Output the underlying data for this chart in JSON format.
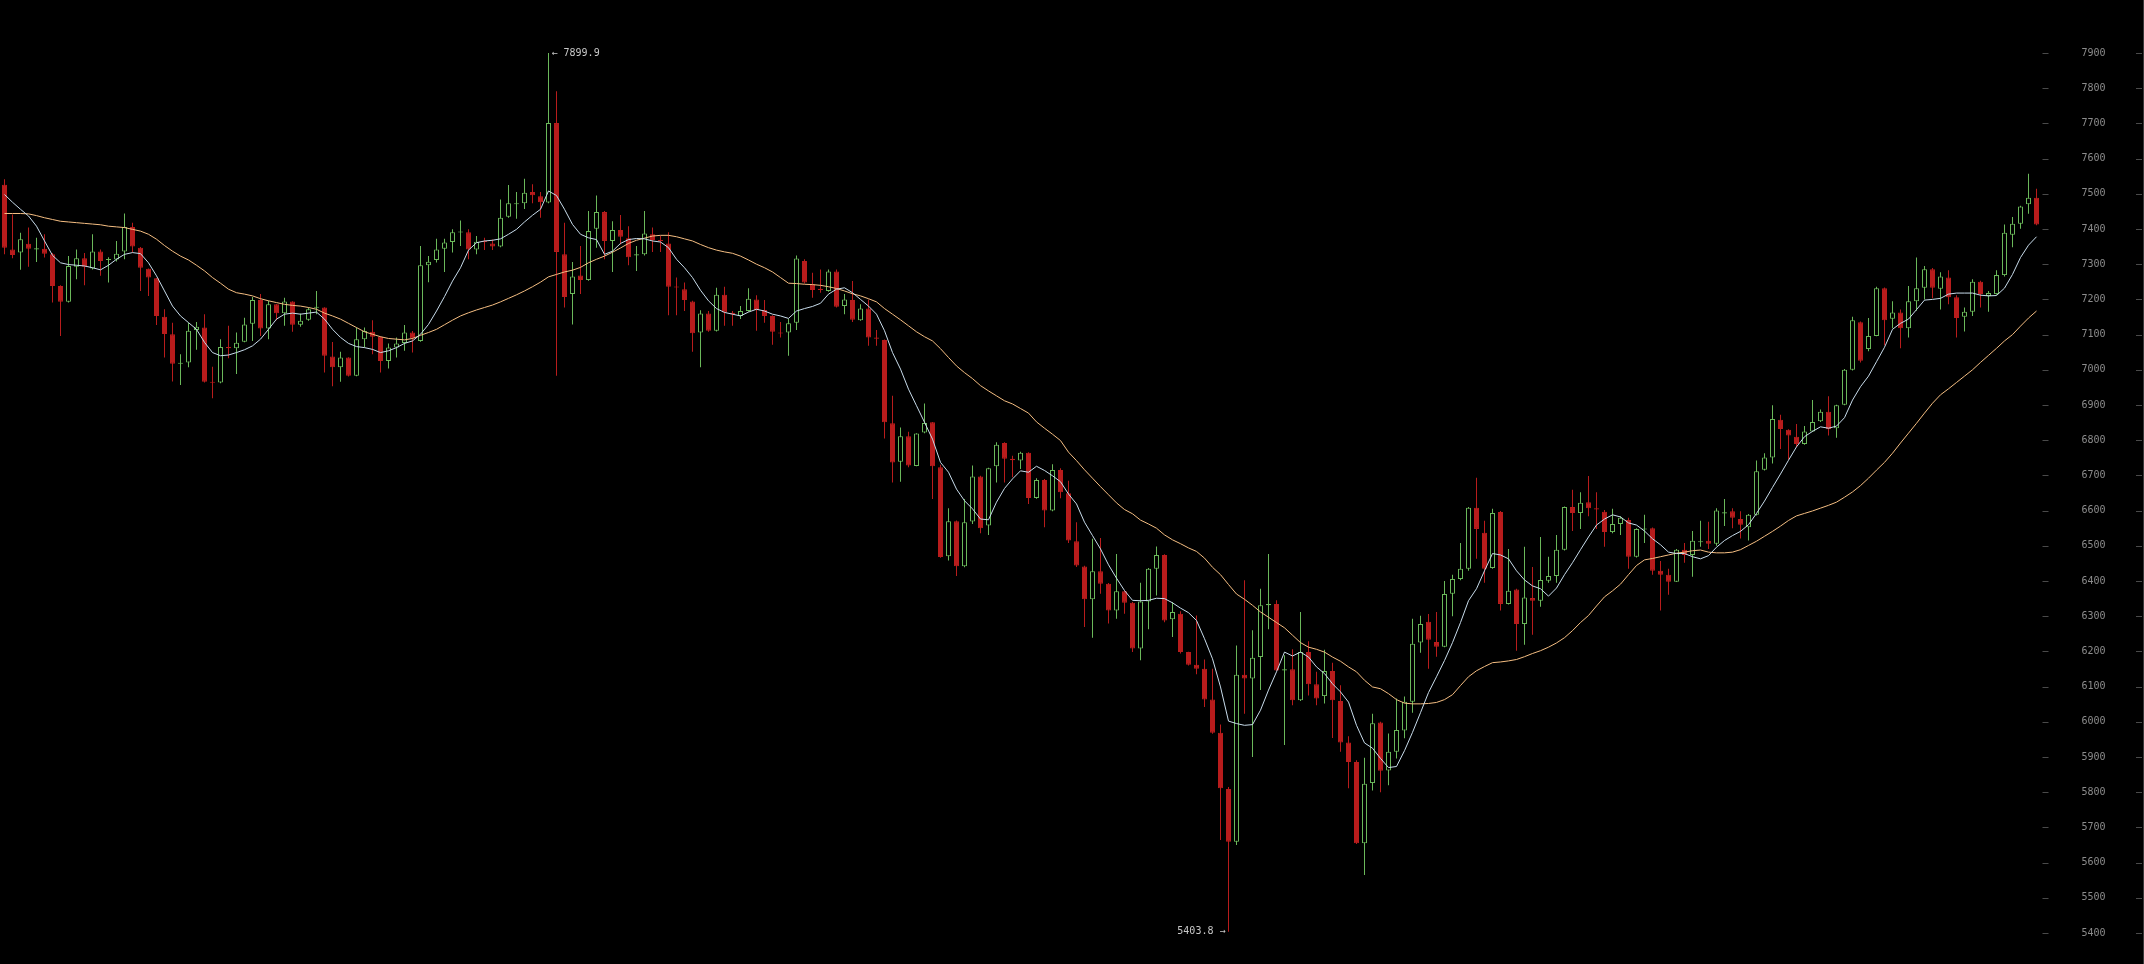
{
  "chart_data": {
    "type": "candlestick",
    "categories": [
      null,
      null,
      null,
      null,
      null,
      null,
      null,
      null,
      null,
      null,
      null,
      null,
      null,
      null,
      null,
      null,
      null,
      null,
      null,
      null,
      null,
      null,
      null,
      null,
      null,
      null,
      null,
      null,
      null,
      null,
      null,
      null,
      null,
      null,
      null,
      null,
      null,
      null,
      null,
      null,
      null,
      null,
      null,
      null,
      null,
      null,
      null,
      null,
      null,
      null,
      null,
      null,
      null,
      null,
      null,
      null,
      null,
      null,
      null,
      null,
      null,
      null,
      null,
      null,
      null,
      null,
      null,
      null,
      null,
      null,
      null,
      null,
      null,
      null,
      null,
      null,
      null,
      null,
      null,
      null,
      null,
      null,
      null,
      null,
      null,
      null,
      null,
      null,
      null,
      null,
      null,
      null,
      null,
      null,
      null,
      null,
      null,
      null,
      null,
      null,
      null,
      null,
      null,
      null,
      null,
      null,
      null,
      null,
      null,
      null,
      null,
      null,
      null,
      null,
      null,
      null,
      null,
      null,
      null,
      null,
      null,
      null,
      null,
      null,
      null,
      null,
      null,
      null,
      null,
      null,
      null,
      null,
      null,
      null,
      null,
      null,
      null,
      null,
      null,
      null,
      null,
      null,
      null,
      null,
      null,
      null,
      null,
      null,
      null,
      null,
      null,
      null,
      null,
      null,
      null,
      null,
      null,
      null,
      null,
      null,
      null,
      null,
      null,
      null,
      null,
      null,
      null,
      null,
      null,
      null,
      null,
      null,
      null,
      null,
      null,
      null,
      null,
      null,
      null,
      null,
      null,
      null,
      null,
      null,
      null,
      null,
      null,
      null,
      null,
      null,
      null,
      null,
      null,
      null,
      null,
      null,
      null,
      null,
      null,
      null,
      null,
      null,
      null,
      null,
      null,
      null,
      null,
      null,
      null,
      null,
      null,
      null,
      null,
      null,
      null,
      null,
      null,
      null,
      null,
      null,
      null,
      null,
      null,
      null,
      null,
      null,
      null,
      null,
      null,
      null,
      null,
      null,
      null,
      null,
      null,
      null,
      null,
      null,
      null,
      null,
      null,
      null,
      null,
      null,
      null,
      null,
      null,
      null,
      null,
      null,
      null,
      null,
      null,
      null,
      null
    ],
    "ohlc": [
      [
        7526,
        7541,
        7328,
        7347
      ],
      [
        7342,
        7441,
        7317,
        7326
      ],
      [
        7333,
        7389,
        7284,
        7371
      ],
      [
        7358,
        7404,
        7293,
        7344
      ],
      [
        7342,
        7375,
        7306,
        7345
      ],
      [
        7344,
        7385,
        7319,
        7330
      ],
      [
        7328,
        7332,
        7191,
        7238
      ],
      [
        7238,
        7240,
        7096,
        7193
      ],
      [
        7193,
        7323,
        7191,
        7295
      ],
      [
        7293,
        7342,
        7257,
        7317
      ],
      [
        7317,
        7332,
        7240,
        7293
      ],
      [
        7288,
        7385,
        7285,
        7336
      ],
      [
        7336,
        7342,
        7267,
        7309
      ],
      [
        7312,
        7320,
        7248,
        7315
      ],
      [
        7313,
        7366,
        7308,
        7330
      ],
      [
        7336,
        7444,
        7314,
        7406
      ],
      [
        7406,
        7418,
        7333,
        7350
      ],
      [
        7347,
        7349,
        7224,
        7290
      ],
      [
        7287,
        7288,
        7210,
        7262
      ],
      [
        7260,
        7261,
        7127,
        7153
      ],
      [
        7151,
        7172,
        7035,
        7102
      ],
      [
        7101,
        7134,
        6967,
        7017
      ],
      [
        7017,
        7044,
        6957,
        7019
      ],
      [
        7021,
        7134,
        7007,
        7111
      ],
      [
        7113,
        7136,
        7057,
        7122
      ],
      [
        7120,
        7158,
        6964,
        6966
      ],
      [
        6966,
        7009,
        6919,
        6963
      ],
      [
        6964,
        7087,
        6962,
        7065
      ],
      [
        7065,
        7125,
        7033,
        7061
      ],
      [
        7061,
        7106,
        6988,
        7077
      ],
      [
        7080,
        7148,
        7078,
        7129
      ],
      [
        7131,
        7207,
        7082,
        7198
      ],
      [
        7198,
        7215,
        7096,
        7117
      ],
      [
        7117,
        7196,
        7087,
        7186
      ],
      [
        7186,
        7187,
        7141,
        7161
      ],
      [
        7161,
        7205,
        7125,
        7194
      ],
      [
        7194,
        7195,
        7108,
        7128
      ],
      [
        7128,
        7160,
        7122,
        7139
      ],
      [
        7142,
        7177,
        7139,
        7172
      ],
      [
        7176,
        7224,
        7158,
        7179
      ],
      [
        7177,
        7178,
        6992,
        7040
      ],
      [
        7038,
        7079,
        6953,
        7007
      ],
      [
        7007,
        7051,
        6966,
        7035
      ],
      [
        7035,
        7036,
        6981,
        6983
      ],
      [
        6983,
        7120,
        6982,
        7087
      ],
      [
        7087,
        7120,
        7063,
        7110
      ],
      [
        7108,
        7141,
        7044,
        7094
      ],
      [
        7094,
        7095,
        6992,
        7025
      ],
      [
        7025,
        7075,
        7004,
        7063
      ],
      [
        7063,
        7092,
        7035,
        7075
      ],
      [
        7076,
        7127,
        7054,
        7106
      ],
      [
        7106,
        7110,
        7049,
        7089
      ],
      [
        7082,
        7352,
        7080,
        7297
      ],
      [
        7297,
        7323,
        7249,
        7307
      ],
      [
        7312,
        7372,
        7305,
        7342
      ],
      [
        7344,
        7372,
        7278,
        7362
      ],
      [
        7363,
        7399,
        7333,
        7391
      ],
      [
        7390,
        7424,
        7352,
        7392
      ],
      [
        7391,
        7399,
        7314,
        7342
      ],
      [
        7342,
        7380,
        7328,
        7364
      ],
      [
        7366,
        7375,
        7340,
        7363
      ],
      [
        7359,
        7370,
        7340,
        7350
      ],
      [
        7350,
        7484,
        7348,
        7432
      ],
      [
        7435,
        7525,
        7432,
        7473
      ],
      [
        7470,
        7505,
        7429,
        7473
      ],
      [
        7473,
        7543,
        7457,
        7503
      ],
      [
        7505,
        7527,
        7473,
        7496
      ],
      [
        7493,
        7505,
        7432,
        7476
      ],
      [
        7475,
        7899.9,
        7473,
        7701
      ],
      [
        7701,
        7791,
        6983,
        7335
      ],
      [
        7328,
        7418,
        7177,
        7207
      ],
      [
        7215,
        7306,
        7129,
        7265
      ],
      [
        7268,
        7352,
        7215,
        7255
      ],
      [
        7255,
        7451,
        7253,
        7394
      ],
      [
        7401,
        7495,
        7347,
        7448
      ],
      [
        7448,
        7451,
        7314,
        7366
      ],
      [
        7366,
        7422,
        7278,
        7397
      ],
      [
        7397,
        7440,
        7356,
        7378
      ],
      [
        7374,
        7408,
        7297,
        7320
      ],
      [
        7325,
        7352,
        7281,
        7328
      ],
      [
        7328,
        7451,
        7325,
        7387
      ],
      [
        7385,
        7404,
        7335,
        7369
      ],
      [
        7369,
        7380,
        7335,
        7366
      ],
      [
        7359,
        7391,
        7155,
        7236
      ],
      [
        7237,
        7262,
        7155,
        7234
      ],
      [
        7229,
        7248,
        7167,
        7198
      ],
      [
        7194,
        7196,
        7051,
        7104
      ],
      [
        7106,
        7169,
        7007,
        7160
      ],
      [
        7160,
        7167,
        7108,
        7111
      ],
      [
        7111,
        7233,
        7109,
        7213
      ],
      [
        7213,
        7236,
        7125,
        7163
      ],
      [
        7162,
        7167,
        7125,
        7158
      ],
      [
        7153,
        7181,
        7144,
        7167
      ],
      [
        7167,
        7232,
        7165,
        7202
      ],
      [
        7200,
        7212,
        7111,
        7170
      ],
      [
        7170,
        7198,
        7134,
        7153
      ],
      [
        7153,
        7155,
        7071,
        7108
      ],
      [
        7106,
        7136,
        7092,
        7103
      ],
      [
        7106,
        7144,
        7040,
        7132
      ],
      [
        7134,
        7325,
        7113,
        7316
      ],
      [
        7309,
        7314,
        7245,
        7248
      ],
      [
        7243,
        7276,
        7205,
        7227
      ],
      [
        7230,
        7285,
        7219,
        7227
      ],
      [
        7224,
        7285,
        7222,
        7279
      ],
      [
        7279,
        7285,
        7177,
        7179
      ],
      [
        7181,
        7215,
        7158,
        7200
      ],
      [
        7198,
        7252,
        7136,
        7142
      ],
      [
        7141,
        7186,
        7139,
        7174
      ],
      [
        7174,
        7200,
        7068,
        7092
      ],
      [
        7092,
        7113,
        7068,
        7088
      ],
      [
        7085,
        7086,
        6805,
        6851
      ],
      [
        6848,
        6926,
        6680,
        6737
      ],
      [
        6739,
        6836,
        6682,
        6811
      ],
      [
        6811,
        6824,
        6723,
        6728
      ],
      [
        6727,
        6820,
        6726,
        6819
      ],
      [
        6822,
        6904,
        6820,
        6849
      ],
      [
        6851,
        6852,
        6633,
        6726
      ],
      [
        6723,
        6730,
        6466,
        6468
      ],
      [
        6470,
        6607,
        6458,
        6570
      ],
      [
        6570,
        6572,
        6414,
        6442
      ],
      [
        6442,
        6633,
        6439,
        6567
      ],
      [
        6569,
        6728,
        6562,
        6697
      ],
      [
        6697,
        6699,
        6536,
        6550
      ],
      [
        6558,
        6722,
        6531,
        6720
      ],
      [
        6726,
        6794,
        6680,
        6787
      ],
      [
        6792,
        6794,
        6680,
        6747
      ],
      [
        6747,
        6756,
        6695,
        6743
      ],
      [
        6742,
        6767,
        6718,
        6764
      ],
      [
        6764,
        6766,
        6619,
        6636
      ],
      [
        6636,
        6692,
        6634,
        6687
      ],
      [
        6687,
        6690,
        6553,
        6600
      ],
      [
        6600,
        6732,
        6598,
        6715
      ],
      [
        6715,
        6720,
        6635,
        6652
      ],
      [
        6649,
        6685,
        6508,
        6515
      ],
      [
        6513,
        6567,
        6440,
        6444
      ],
      [
        6441,
        6443,
        6269,
        6348
      ],
      [
        6348,
        6520,
        6239,
        6428
      ],
      [
        6428,
        6522,
        6364,
        6392
      ],
      [
        6392,
        6394,
        6279,
        6316
      ],
      [
        6316,
        6477,
        6293,
        6371
      ],
      [
        6371,
        6373,
        6307,
        6338
      ],
      [
        6338,
        6340,
        6198,
        6208
      ],
      [
        6208,
        6395,
        6175,
        6342
      ],
      [
        6342,
        6437,
        6263,
        6435
      ],
      [
        6435,
        6498,
        6359,
        6474
      ],
      [
        6474,
        6476,
        6283,
        6288
      ],
      [
        6291,
        6340,
        6241,
        6312
      ],
      [
        6307,
        6314,
        6194,
        6198
      ],
      [
        6198,
        6199,
        6160,
        6162
      ],
      [
        6162,
        6302,
        6135,
        6151
      ],
      [
        6151,
        6177,
        6042,
        6063
      ],
      [
        6063,
        6151,
        5966,
        5969
      ],
      [
        5969,
        5992,
        5664,
        5811
      ],
      [
        5809,
        5815,
        5403.8,
        5659
      ],
      [
        5659,
        6217,
        5650,
        6134
      ],
      [
        6134,
        6402,
        6023,
        6123
      ],
      [
        6123,
        6260,
        5900,
        6182
      ],
      [
        6184,
        6378,
        6090,
        6331
      ],
      [
        6331,
        6477,
        6263,
        6335
      ],
      [
        6335,
        6345,
        6144,
        6146
      ],
      [
        6146,
        6189,
        5934,
        6149
      ],
      [
        6149,
        6206,
        6047,
        6061
      ],
      [
        6061,
        6312,
        6059,
        6198
      ],
      [
        6198,
        6229,
        6075,
        6107
      ],
      [
        6107,
        6142,
        6047,
        6066
      ],
      [
        6073,
        6205,
        6052,
        6144
      ],
      [
        6144,
        6168,
        5954,
        6061
      ],
      [
        6059,
        6104,
        5915,
        5941
      ],
      [
        5941,
        5959,
        5811,
        5886
      ],
      [
        5886,
        5891,
        5653,
        5655
      ],
      [
        5655,
        5898,
        5565,
        5824
      ],
      [
        5826,
        6023,
        5805,
        5996
      ],
      [
        5998,
        6000,
        5800,
        5861
      ],
      [
        5862,
        5967,
        5820,
        5915
      ],
      [
        5915,
        6066,
        5896,
        5977
      ],
      [
        5975,
        6072,
        5953,
        6057
      ],
      [
        6057,
        6293,
        6026,
        6222
      ],
      [
        6225,
        6301,
        6196,
        6278
      ],
      [
        6284,
        6306,
        6151,
        6233
      ],
      [
        6227,
        6312,
        6185,
        6213
      ],
      [
        6213,
        6400,
        6212,
        6363
      ],
      [
        6364,
        6418,
        6300,
        6406
      ],
      [
        6406,
        6508,
        6402,
        6435
      ],
      [
        6435,
        6610,
        6429,
        6608
      ],
      [
        6608,
        6693,
        6463,
        6548
      ],
      [
        6537,
        6571,
        6395,
        6435
      ],
      [
        6437,
        6605,
        6435,
        6593
      ],
      [
        6596,
        6599,
        6316,
        6335
      ],
      [
        6335,
        6491,
        6333,
        6372
      ],
      [
        6376,
        6378,
        6202,
        6278
      ],
      [
        6278,
        6497,
        6219,
        6353
      ],
      [
        6352,
        6440,
        6247,
        6344
      ],
      [
        6344,
        6525,
        6327,
        6403
      ],
      [
        6401,
        6469,
        6395,
        6414
      ],
      [
        6414,
        6531,
        6395,
        6489
      ],
      [
        6489,
        6612,
        6487,
        6610
      ],
      [
        6610,
        6659,
        6542,
        6593
      ],
      [
        6593,
        6652,
        6548,
        6622
      ],
      [
        6624,
        6698,
        6584,
        6607
      ],
      [
        6607,
        6652,
        6548,
        6603
      ],
      [
        6597,
        6602,
        6497,
        6539
      ],
      [
        6539,
        6605,
        6536,
        6562
      ],
      [
        6562,
        6584,
        6531,
        6580
      ],
      [
        6573,
        6580,
        6435,
        6469
      ],
      [
        6469,
        6550,
        6467,
        6548
      ],
      [
        6546,
        6588,
        6508,
        6549
      ],
      [
        6550,
        6552,
        6418,
        6429
      ],
      [
        6429,
        6457,
        6316,
        6418
      ],
      [
        6418,
        6435,
        6361,
        6398
      ],
      [
        6398,
        6491,
        6397,
        6489
      ],
      [
        6489,
        6508,
        6452,
        6474
      ],
      [
        6474,
        6542,
        6412,
        6514
      ],
      [
        6510,
        6571,
        6497,
        6513
      ],
      [
        6514,
        6568,
        6491,
        6506
      ],
      [
        6506,
        6607,
        6500,
        6600
      ],
      [
        6592,
        6633,
        6556,
        6595
      ],
      [
        6598,
        6607,
        6550,
        6580
      ],
      [
        6576,
        6598,
        6521,
        6560
      ],
      [
        6553,
        6590,
        6515,
        6588
      ],
      [
        6588,
        6742,
        6586,
        6712
      ],
      [
        6716,
        6763,
        6714,
        6751
      ],
      [
        6751,
        6899,
        6734,
        6860
      ],
      [
        6858,
        6872,
        6775,
        6832
      ],
      [
        6830,
        6831,
        6745,
        6813
      ],
      [
        6810,
        6846,
        6781,
        6789
      ],
      [
        6789,
        6840,
        6787,
        6825
      ],
      [
        6825,
        6914,
        6823,
        6852
      ],
      [
        6854,
        6887,
        6852,
        6881
      ],
      [
        6881,
        6925,
        6813,
        6831
      ],
      [
        6834,
        6901,
        6807,
        6899
      ],
      [
        6901,
        7002,
        6899,
        7000
      ],
      [
        7000,
        7151,
        6998,
        7141
      ],
      [
        7135,
        7137,
        7021,
        7026
      ],
      [
        7059,
        7147,
        7053,
        7096
      ],
      [
        7096,
        7236,
        7095,
        7232
      ],
      [
        7232,
        7234,
        7070,
        7141
      ],
      [
        7145,
        7195,
        7118,
        7163
      ],
      [
        7163,
        7171,
        7061,
        7118
      ],
      [
        7118,
        7238,
        7092,
        7195
      ],
      [
        7195,
        7319,
        7168,
        7232
      ],
      [
        7233,
        7295,
        7200,
        7286
      ],
      [
        7286,
        7289,
        7203,
        7233
      ],
      [
        7230,
        7277,
        7171,
        7265
      ],
      [
        7262,
        7283,
        7186,
        7206
      ],
      [
        7206,
        7212,
        7092,
        7147
      ],
      [
        7151,
        7177,
        7109,
        7165
      ],
      [
        7165,
        7257,
        7153,
        7250
      ],
      [
        7250,
        7253,
        7177,
        7215
      ],
      [
        7210,
        7224,
        7165,
        7218
      ],
      [
        7215,
        7283,
        7213,
        7269
      ],
      [
        7269,
        7413,
        7265,
        7389
      ],
      [
        7384,
        7434,
        7348,
        7415
      ],
      [
        7415,
        7466,
        7401,
        7464
      ],
      [
        7470,
        7557,
        7443,
        7489
      ],
      [
        7489,
        7514,
        7411,
        7413
      ]
    ],
    "colors": [
      "#b81c1c",
      "#b81c1c",
      "#6ab85a",
      "#b81c1c",
      "#6ab85a",
      "#b81c1c",
      "#b81c1c",
      "#b81c1c",
      "#6ab85a",
      "#6ab85a",
      "#b81c1c",
      "#6ab85a",
      "#b81c1c",
      "#6ab85a",
      "#6ab85a",
      "#6ab85a",
      "#b81c1c",
      "#b81c1c",
      "#b81c1c",
      "#b81c1c",
      "#b81c1c",
      "#b81c1c",
      "#6ab85a",
      "#6ab85a",
      "#6ab85a",
      "#b81c1c",
      "#b81c1c",
      "#6ab85a",
      "#b81c1c",
      "#6ab85a",
      "#6ab85a",
      "#6ab85a",
      "#b81c1c",
      "#6ab85a",
      "#b81c1c",
      "#6ab85a",
      "#b81c1c",
      "#6ab85a",
      "#6ab85a",
      "#6ab85a",
      "#b81c1c",
      "#b81c1c",
      "#6ab85a",
      "#b81c1c",
      "#6ab85a",
      "#6ab85a",
      "#b81c1c",
      "#b81c1c",
      "#6ab85a",
      "#6ab85a",
      "#6ab85a",
      "#b81c1c",
      "#6ab85a",
      "#6ab85a",
      "#6ab85a",
      "#6ab85a",
      "#6ab85a",
      "#6ab85a",
      "#b81c1c",
      "#6ab85a",
      "#b81c1c",
      "#b81c1c",
      "#6ab85a",
      "#6ab85a",
      "#6ab85a",
      "#6ab85a",
      "#b81c1c",
      "#b81c1c",
      "#6ab85a",
      "#b81c1c",
      "#b81c1c",
      "#6ab85a",
      "#b81c1c",
      "#6ab85a",
      "#6ab85a",
      "#b81c1c",
      "#6ab85a",
      "#b81c1c",
      "#b81c1c",
      "#6ab85a",
      "#6ab85a",
      "#b81c1c",
      "#b81c1c",
      "#b81c1c",
      "#b81c1c",
      "#b81c1c",
      "#b81c1c",
      "#6ab85a",
      "#b81c1c",
      "#6ab85a",
      "#b81c1c",
      "#b81c1c",
      "#6ab85a",
      "#6ab85a",
      "#b81c1c",
      "#b81c1c",
      "#b81c1c",
      "#b81c1c",
      "#6ab85a",
      "#6ab85a",
      "#b81c1c",
      "#b81c1c",
      "#b81c1c",
      "#6ab85a",
      "#b81c1c",
      "#6ab85a",
      "#b81c1c",
      "#6ab85a",
      "#b81c1c",
      "#b81c1c",
      "#b81c1c",
      "#b81c1c",
      "#6ab85a",
      "#b81c1c",
      "#6ab85a",
      "#6ab85a",
      "#b81c1c",
      "#b81c1c",
      "#6ab85a",
      "#b81c1c",
      "#6ab85a",
      "#6ab85a",
      "#b81c1c",
      "#6ab85a",
      "#6ab85a",
      "#b81c1c",
      "#b81c1c",
      "#6ab85a",
      "#b81c1c",
      "#6ab85a",
      "#b81c1c",
      "#6ab85a",
      "#b81c1c",
      "#b81c1c",
      "#b81c1c",
      "#b81c1c",
      "#6ab85a",
      "#b81c1c",
      "#b81c1c",
      "#6ab85a",
      "#b81c1c",
      "#b81c1c",
      "#6ab85a",
      "#6ab85a",
      "#6ab85a",
      "#b81c1c",
      "#6ab85a",
      "#b81c1c",
      "#b81c1c",
      "#b81c1c",
      "#b81c1c",
      "#b81c1c",
      "#b81c1c",
      "#b81c1c",
      "#6ab85a",
      "#b81c1c",
      "#6ab85a",
      "#6ab85a",
      "#6ab85a",
      "#b81c1c",
      "#6ab85a",
      "#b81c1c",
      "#6ab85a",
      "#b81c1c",
      "#b81c1c",
      "#6ab85a",
      "#b81c1c",
      "#b81c1c",
      "#b81c1c",
      "#b81c1c",
      "#6ab85a",
      "#6ab85a",
      "#b81c1c",
      "#6ab85a",
      "#6ab85a",
      "#6ab85a",
      "#6ab85a",
      "#6ab85a",
      "#b81c1c",
      "#b81c1c",
      "#6ab85a",
      "#6ab85a",
      "#6ab85a",
      "#6ab85a",
      "#b81c1c",
      "#b81c1c",
      "#6ab85a",
      "#b81c1c",
      "#6ab85a",
      "#b81c1c",
      "#6ab85a",
      "#b81c1c",
      "#6ab85a",
      "#6ab85a",
      "#6ab85a",
      "#6ab85a",
      "#b81c1c",
      "#6ab85a",
      "#b81c1c",
      "#b81c1c",
      "#b81c1c",
      "#6ab85a",
      "#6ab85a",
      "#b81c1c",
      "#6ab85a",
      "#6ab85a",
      "#b81c1c",
      "#b81c1c",
      "#b81c1c",
      "#6ab85a",
      "#b81c1c",
      "#6ab85a",
      "#6ab85a",
      "#b81c1c",
      "#6ab85a",
      "#6ab85a",
      "#b81c1c",
      "#b81c1c",
      "#6ab85a",
      "#6ab85a",
      "#6ab85a",
      "#6ab85a",
      "#b81c1c",
      "#b81c1c",
      "#b81c1c",
      "#6ab85a",
      "#6ab85a",
      "#6ab85a",
      "#b81c1c",
      "#6ab85a",
      "#6ab85a",
      "#6ab85a",
      "#b81c1c",
      "#6ab85a",
      "#6ab85a",
      "#b81c1c",
      "#6ab85a",
      "#b81c1c",
      "#6ab85a",
      "#6ab85a",
      "#6ab85a",
      "#b81c1c",
      "#6ab85a",
      "#b81c1c",
      "#b81c1c",
      "#6ab85a",
      "#6ab85a",
      "#b81c1c",
      "#6ab85a",
      "#6ab85a",
      "#6ab85a",
      "#6ab85a",
      "#6ab85a",
      "#6ab85a",
      "#b81c1c"
    ],
    "series": [
      {
        "type": "line",
        "color": "#c8dceb",
        "values": [
          7498,
          7476,
          7456,
          7437,
          7408,
          7366,
          7325,
          7304,
          7299,
          7297,
          7295,
          7290,
          7284,
          7297,
          7314,
          7328,
          7333,
          7330,
          7304,
          7267,
          7224,
          7181,
          7153,
          7134,
          7115,
          7078,
          7049,
          7040,
          7042,
          7049,
          7057,
          7068,
          7087,
          7115,
          7144,
          7158,
          7161,
          7158,
          7161,
          7164,
          7144,
          7115,
          7092,
          7075,
          7066,
          7063,
          7058,
          7049,
          7054,
          7063,
          7075,
          7082,
          7101,
          7129,
          7167,
          7208,
          7252,
          7290,
          7340,
          7361,
          7366,
          7368,
          7372,
          7385,
          7399,
          7420,
          7439,
          7456,
          7508,
          7495,
          7456,
          7413,
          7385,
          7375,
          7370,
          7328,
          7337,
          7359,
          7370,
          7373,
          7372,
          7366,
          7363,
          7347,
          7314,
          7290,
          7262,
          7226,
          7196,
          7174,
          7163,
          7158,
          7153,
          7164,
          7172,
          7167,
          7158,
          7153,
          7146,
          7167,
          7174,
          7180,
          7189,
          7215,
          7229,
          7233,
          7219,
          7200,
          7181,
          7158,
          7111,
          7049,
          7002,
          6945,
          6898,
          6851,
          6803,
          6737,
          6709,
          6661,
          6628,
          6605,
          6576,
          6574,
          6624,
          6663,
          6690,
          6713,
          6709,
          6726,
          6714,
          6699,
          6682,
          6647,
          6619,
          6567,
          6529,
          6491,
          6446,
          6408,
          6373,
          6345,
          6344,
          6345,
          6351,
          6350,
          6338,
          6323,
          6310,
          6288,
          6236,
          6179,
          6099,
          6002,
          5995,
          5990,
          5992,
          6033,
          6090,
          6142,
          6198,
          6187,
          6198,
          6184,
          6156,
          6137,
          6108,
          6085,
          6056,
          5990,
          5940,
          5925,
          5896,
          5870,
          5873,
          5918,
          5970,
          6026,
          6083,
          6128,
          6174,
          6225,
          6282,
          6344,
          6378,
          6429,
          6478,
          6474,
          6463,
          6429,
          6403,
          6386,
          6378,
          6357,
          6380,
          6418,
          6452,
          6489,
          6525,
          6559,
          6576,
          6588,
          6582,
          6565,
          6559,
          6542,
          6520,
          6503,
          6482,
          6478,
          6478,
          6469,
          6463,
          6472,
          6496,
          6515,
          6529,
          6541,
          6560,
          6592,
          6627,
          6666,
          6704,
          6743,
          6781,
          6810,
          6825,
          6838,
          6834,
          6840,
          6864,
          6914,
          6952,
          6982,
          7023,
          7064,
          7115,
          7132,
          7144,
          7171,
          7198,
          7200,
          7203,
          7215,
          7218,
          7218,
          7218,
          7212,
          7210,
          7211,
          7232,
          7271,
          7319,
          7354,
          7378
        ]
      },
      {
        "type": "line",
        "color": "#f5be82",
        "values": [
          7444,
          7444,
          7444,
          7443,
          7438,
          7432,
          7427,
          7422,
          7420,
          7418,
          7416,
          7414,
          7412,
          7408,
          7406,
          7404,
          7399,
          7394,
          7385,
          7371,
          7353,
          7337,
          7323,
          7312,
          7297,
          7281,
          7262,
          7246,
          7229,
          7219,
          7215,
          7210,
          7202,
          7196,
          7191,
          7186,
          7183,
          7181,
          7177,
          7172,
          7161,
          7153,
          7144,
          7132,
          7120,
          7108,
          7101,
          7094,
          7089,
          7087,
          7085,
          7089,
          7098,
          7106,
          7115,
          7128,
          7141,
          7153,
          7162,
          7170,
          7177,
          7184,
          7193,
          7203,
          7213,
          7224,
          7236,
          7249,
          7264,
          7271,
          7278,
          7283,
          7291,
          7304,
          7314,
          7323,
          7334,
          7346,
          7359,
          7368,
          7374,
          7380,
          7382,
          7382,
          7378,
          7372,
          7366,
          7356,
          7347,
          7340,
          7335,
          7331,
          7323,
          7312,
          7300,
          7290,
          7278,
          7262,
          7246,
          7245,
          7243,
          7242,
          7240,
          7236,
          7231,
          7224,
          7216,
          7210,
          7202,
          7193,
          7174,
          7158,
          7142,
          7125,
          7108,
          7094,
          7082,
          7060,
          7035,
          7011,
          6992,
          6975,
          6955,
          6940,
          6926,
          6912,
          6903,
          6890,
          6877,
          6852,
          6834,
          6817,
          6799,
          6766,
          6742,
          6716,
          6692,
          6668,
          6645,
          6622,
          6603,
          6591,
          6573,
          6562,
          6550,
          6531,
          6517,
          6506,
          6494,
          6484,
          6465,
          6439,
          6418,
          6390,
          6363,
          6348,
          6331,
          6312,
          6297,
          6282,
          6267,
          6246,
          6225,
          6212,
          6206,
          6198,
          6184,
          6172,
          6156,
          6142,
          6118,
          6099,
          6094,
          6080,
          6063,
          6053,
          6051,
          6051,
          6052,
          6055,
          6063,
          6077,
          6103,
          6128,
          6145,
          6157,
          6168,
          6170,
          6173,
          6177,
          6185,
          6194,
          6202,
          6212,
          6224,
          6239,
          6259,
          6282,
          6302,
          6329,
          6355,
          6372,
          6391,
          6418,
          6444,
          6460,
          6464,
          6469,
          6474,
          6479,
          6482,
          6486,
          6488,
          6482,
          6480,
          6480,
          6482,
          6489,
          6501,
          6513,
          6527,
          6541,
          6556,
          6572,
          6585,
          6592,
          6599,
          6607,
          6615,
          6624,
          6638,
          6653,
          6671,
          6692,
          6715,
          6737,
          6763,
          6792,
          6820,
          6848,
          6877,
          6905,
          6929,
          6946,
          6964,
          6982,
          7000,
          7021,
          7041,
          7061,
          7082,
          7100,
          7124,
          7147,
          7167
        ]
      }
    ],
    "ylim": [
      5400,
      7900
    ],
    "yticks": [
      5400,
      5500,
      5600,
      5700,
      5800,
      5900,
      6000,
      6100,
      6200,
      6300,
      6400,
      6500,
      6600,
      6700,
      6800,
      6900,
      7000,
      7100,
      7200,
      7300,
      7400,
      7500,
      7600,
      7700,
      7800,
      7900
    ],
    "tick_labels": "y",
    "annotations": [
      "← 7899.9",
      "5403.8 →"
    ]
  }
}
